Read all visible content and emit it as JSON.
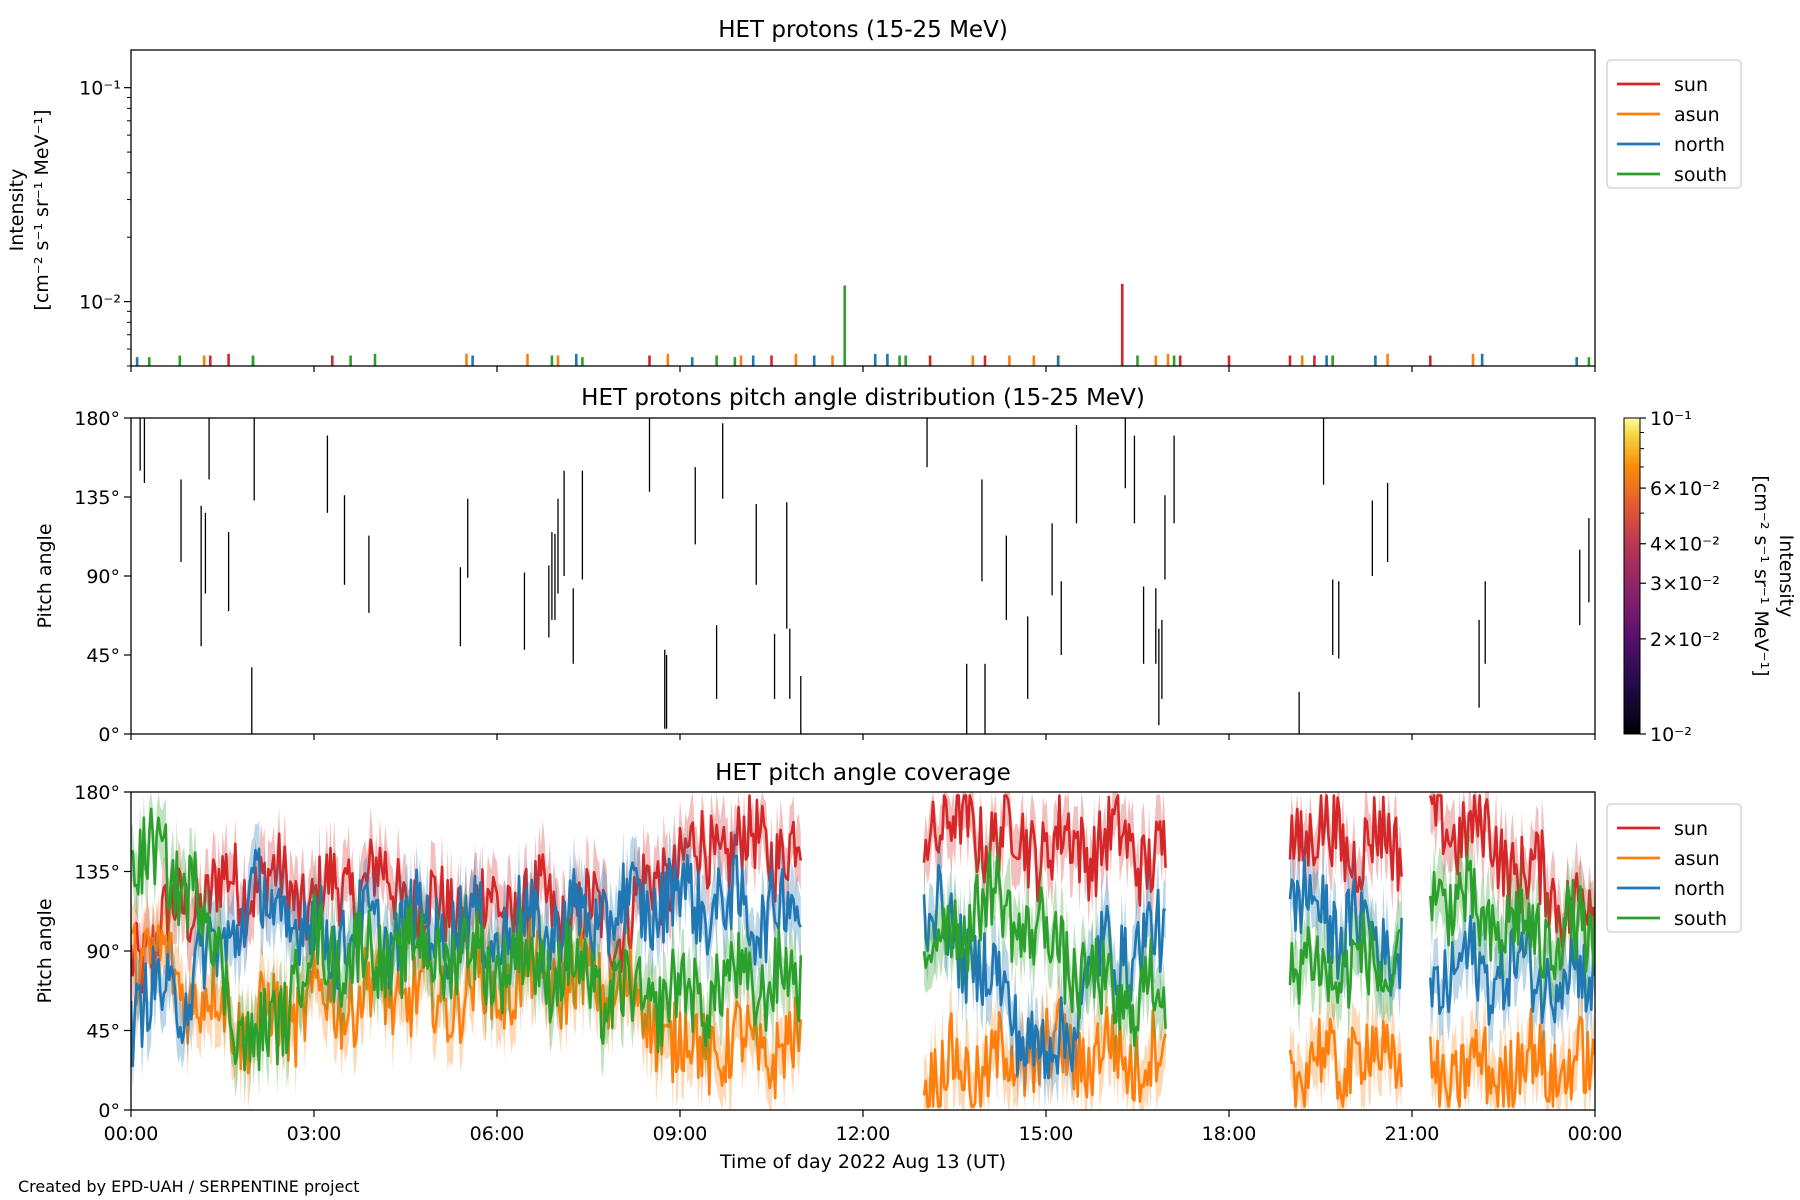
{
  "figure": {
    "credit": "Created by EPD-UAH / SERPENTINE project",
    "xlabel": "Time of day 2022 Aug 13 (UT)",
    "x_ticks": [
      "00:00",
      "03:00",
      "06:00",
      "09:00",
      "12:00",
      "15:00",
      "18:00",
      "21:00",
      "00:00"
    ]
  },
  "colors": {
    "sun": "#d62728",
    "asun": "#ff7f0e",
    "north": "#1f77b4",
    "south": "#2ca02c"
  },
  "chart_data": [
    {
      "type": "line",
      "title": "HET protons (15-25 MeV)",
      "ylabel_line1": "Intensity",
      "ylabel_line2": "[cm⁻² s⁻¹ sr⁻¹ MeV⁻¹]",
      "yscale": "log",
      "ylim": [
        0.005,
        0.15
      ],
      "y_ticks": [
        {
          "value": 0.1,
          "label": "10⁻¹"
        },
        {
          "value": 0.01,
          "label": "10⁻²"
        }
      ],
      "xlim_hours": [
        0,
        24
      ],
      "legend": [
        "sun",
        "asun",
        "north",
        "south"
      ],
      "legend_placement": "outside right, top",
      "series": [
        {
          "name": "sun",
          "spikes": [
            [
              1.3,
              0.0056
            ],
            [
              1.6,
              0.0057
            ],
            [
              3.3,
              0.0056
            ],
            [
              8.5,
              0.0056
            ],
            [
              10.5,
              0.0056
            ],
            [
              13.1,
              0.0056
            ],
            [
              14.0,
              0.0056
            ],
            [
              15.2,
              0.0056
            ],
            [
              16.25,
              0.0121
            ],
            [
              17.2,
              0.0056
            ],
            [
              18.0,
              0.0056
            ],
            [
              19.0,
              0.0056
            ],
            [
              19.4,
              0.0056
            ],
            [
              21.3,
              0.0056
            ]
          ]
        },
        {
          "name": "asun",
          "spikes": [
            [
              1.2,
              0.0056
            ],
            [
              5.5,
              0.0057
            ],
            [
              6.5,
              0.0057
            ],
            [
              7.0,
              0.0056
            ],
            [
              8.8,
              0.0057
            ],
            [
              10.0,
              0.0056
            ],
            [
              10.9,
              0.0057
            ],
            [
              11.5,
              0.0056
            ],
            [
              13.8,
              0.0056
            ],
            [
              14.4,
              0.0056
            ],
            [
              14.8,
              0.0056
            ],
            [
              16.8,
              0.0056
            ],
            [
              17.0,
              0.0057
            ],
            [
              19.2,
              0.0056
            ],
            [
              19.7,
              0.0056
            ],
            [
              20.6,
              0.0057
            ],
            [
              22.0,
              0.0057
            ]
          ]
        },
        {
          "name": "north",
          "spikes": [
            [
              0.1,
              0.0055
            ],
            [
              2.0,
              0.0055
            ],
            [
              5.6,
              0.0056
            ],
            [
              7.3,
              0.0057
            ],
            [
              9.2,
              0.0055
            ],
            [
              10.2,
              0.0056
            ],
            [
              11.2,
              0.0056
            ],
            [
              12.2,
              0.0057
            ],
            [
              12.4,
              0.0057
            ],
            [
              15.2,
              0.0055
            ],
            [
              19.6,
              0.0056
            ],
            [
              20.4,
              0.0056
            ],
            [
              22.15,
              0.0057
            ],
            [
              23.7,
              0.0055
            ]
          ]
        },
        {
          "name": "south",
          "spikes": [
            [
              0.3,
              0.0055
            ],
            [
              0.8,
              0.0056
            ],
            [
              2.0,
              0.0056
            ],
            [
              3.6,
              0.0056
            ],
            [
              4.0,
              0.0057
            ],
            [
              6.9,
              0.0056
            ],
            [
              7.4,
              0.0055
            ],
            [
              9.6,
              0.0056
            ],
            [
              9.9,
              0.0055
            ],
            [
              11.7,
              0.0119
            ],
            [
              12.6,
              0.0056
            ],
            [
              12.7,
              0.0056
            ],
            [
              16.5,
              0.0056
            ],
            [
              17.1,
              0.0056
            ],
            [
              19.7,
              0.0056
            ],
            [
              23.9,
              0.0055
            ]
          ]
        }
      ]
    },
    {
      "type": "heatmap",
      "title": "HET protons pitch angle distribution (15-25 MeV)",
      "ylabel": "Pitch angle",
      "ylim": [
        0,
        180
      ],
      "y_ticks": [
        "0°",
        "45°",
        "90°",
        "135°",
        "180°"
      ],
      "xlim_hours": [
        0,
        24
      ],
      "colorbar": {
        "label_line1": "Intensity",
        "label_line2": "[cm⁻² s⁻¹ sr⁻¹ MeV⁻¹]",
        "scale": "log",
        "range": [
          0.01,
          0.1
        ],
        "colormap": "inferno",
        "ticks": [
          {
            "value": 0.1,
            "label": "10⁻¹"
          },
          {
            "value": 0.06,
            "label": "6×10⁻²"
          },
          {
            "value": 0.04,
            "label": "4×10⁻²"
          },
          {
            "value": 0.03,
            "label": "3×10⁻²"
          },
          {
            "value": 0.02,
            "label": "2×10⁻²"
          },
          {
            "value": 0.01,
            "label": "10⁻²"
          }
        ]
      },
      "cells": [
        [
          0.15,
          150,
          180
        ],
        [
          0.22,
          143,
          180
        ],
        [
          0.82,
          98,
          145
        ],
        [
          1.15,
          50,
          130
        ],
        [
          1.22,
          80,
          126
        ],
        [
          1.28,
          145,
          180
        ],
        [
          1.6,
          70,
          115
        ],
        [
          1.98,
          0,
          38
        ],
        [
          2.02,
          133,
          180
        ],
        [
          3.22,
          126,
          170
        ],
        [
          3.5,
          85,
          136
        ],
        [
          3.9,
          69,
          113
        ],
        [
          5.4,
          50,
          95
        ],
        [
          5.52,
          89,
          134
        ],
        [
          6.45,
          48,
          92
        ],
        [
          6.85,
          55,
          96
        ],
        [
          6.9,
          65,
          115
        ],
        [
          6.95,
          65,
          114
        ],
        [
          7.0,
          80,
          134
        ],
        [
          7.1,
          90,
          150
        ],
        [
          7.25,
          40,
          83
        ],
        [
          7.4,
          88,
          150
        ],
        [
          8.5,
          138,
          180
        ],
        [
          8.75,
          3,
          48
        ],
        [
          8.78,
          3,
          45
        ],
        [
          9.25,
          108,
          152
        ],
        [
          9.6,
          20,
          62
        ],
        [
          9.7,
          134,
          177
        ],
        [
          10.25,
          85,
          131
        ],
        [
          10.55,
          20,
          57
        ],
        [
          10.75,
          60,
          132
        ],
        [
          10.8,
          20,
          60
        ],
        [
          10.98,
          0,
          33
        ],
        [
          13.05,
          152,
          180
        ],
        [
          13.7,
          0,
          40
        ],
        [
          13.95,
          87,
          145
        ],
        [
          14.0,
          0,
          40
        ],
        [
          14.35,
          65,
          113
        ],
        [
          14.7,
          20,
          67
        ],
        [
          15.1,
          79,
          120
        ],
        [
          15.25,
          45,
          87
        ],
        [
          15.5,
          120,
          176
        ],
        [
          16.3,
          140,
          180
        ],
        [
          16.45,
          120,
          170
        ],
        [
          16.6,
          40,
          84
        ],
        [
          16.8,
          40,
          83
        ],
        [
          16.85,
          5,
          60
        ],
        [
          16.9,
          20,
          65
        ],
        [
          16.95,
          88,
          136
        ],
        [
          17.1,
          120,
          170
        ],
        [
          19.15,
          0,
          24
        ],
        [
          19.55,
          142,
          180
        ],
        [
          19.7,
          45,
          88
        ],
        [
          19.8,
          43,
          87
        ],
        [
          20.35,
          90,
          133
        ],
        [
          20.6,
          98,
          143
        ],
        [
          22.1,
          15,
          65
        ],
        [
          22.2,
          40,
          87
        ],
        [
          23.75,
          62,
          105
        ],
        [
          23.9,
          75,
          123
        ]
      ]
    },
    {
      "type": "area",
      "title": "HET pitch angle coverage",
      "ylabel": "Pitch angle",
      "ylim": [
        0,
        180
      ],
      "y_ticks": [
        "0°",
        "45°",
        "90°",
        "135°",
        "180°"
      ],
      "xlim_hours": [
        0,
        24
      ],
      "legend": [
        "sun",
        "asun",
        "north",
        "south"
      ],
      "legend_placement": "outside right, top",
      "coverage_segments_hours": [
        [
          0,
          11.0
        ],
        [
          13.0,
          16.97
        ],
        [
          19.0,
          20.85
        ],
        [
          21.3,
          24
        ]
      ],
      "series": [
        {
          "name": "sun",
          "knots": [
            [
              0,
              85
            ],
            [
              1,
              118
            ],
            [
              2,
              132
            ],
            [
              3,
              118
            ],
            [
              4,
              132
            ],
            [
              5,
              112
            ],
            [
              6,
              116
            ],
            [
              7,
              112
            ],
            [
              8,
              106
            ],
            [
              9,
              142
            ],
            [
              10,
              150
            ],
            [
              11,
              150
            ],
            [
              13,
              164
            ],
            [
              14,
              158
            ],
            [
              15,
              150
            ],
            [
              16,
              152
            ],
            [
              17,
              142
            ],
            [
              19,
              160
            ],
            [
              20,
              150
            ],
            [
              20.85,
              152
            ],
            [
              21.3,
              162
            ],
            [
              22,
              160
            ],
            [
              23,
              130
            ],
            [
              24,
              112
            ]
          ]
        },
        {
          "name": "asun",
          "knots": [
            [
              0,
              95
            ],
            [
              1,
              68
            ],
            [
              2,
              48
            ],
            [
              3,
              60
            ],
            [
              4,
              67
            ],
            [
              5,
              62
            ],
            [
              6,
              72
            ],
            [
              7,
              74
            ],
            [
              8,
              70
            ],
            [
              9,
              36
            ],
            [
              10,
              35
            ],
            [
              11,
              32
            ],
            [
              13,
              20
            ],
            [
              14,
              24
            ],
            [
              15,
              32
            ],
            [
              16,
              32
            ],
            [
              17,
              30
            ],
            [
              19,
              22
            ],
            [
              20,
              30
            ],
            [
              20.85,
              30
            ],
            [
              21.3,
              18
            ],
            [
              22,
              20
            ],
            [
              23,
              28
            ],
            [
              24,
              20
            ]
          ]
        },
        {
          "name": "north",
          "knots": [
            [
              0,
              55
            ],
            [
              1,
              72
            ],
            [
              2,
              120
            ],
            [
              3,
              100
            ],
            [
              4,
              100
            ],
            [
              5,
              105
            ],
            [
              6,
              102
            ],
            [
              7,
              104
            ],
            [
              8,
              112
            ],
            [
              9,
              122
            ],
            [
              10,
              112
            ],
            [
              11,
              114
            ],
            [
              13,
              115
            ],
            [
              14,
              80
            ],
            [
              15,
              26
            ],
            [
              16,
              90
            ],
            [
              17,
              95
            ],
            [
              19,
              118
            ],
            [
              20,
              104
            ],
            [
              20.85,
              90
            ],
            [
              21.3,
              75
            ],
            [
              22,
              80
            ],
            [
              23,
              78
            ],
            [
              24,
              76
            ]
          ]
        },
        {
          "name": "south",
          "knots": [
            [
              0,
              145
            ],
            [
              1,
              130
            ],
            [
              2,
              28
            ],
            [
              3,
              92
            ],
            [
              4,
              86
            ],
            [
              5,
              90
            ],
            [
              6,
              85
            ],
            [
              7,
              82
            ],
            [
              8,
              62
            ],
            [
              9,
              64
            ],
            [
              10,
              72
            ],
            [
              11,
              72
            ],
            [
              13,
              88
            ],
            [
              14,
              120
            ],
            [
              15,
              98
            ],
            [
              16,
              62
            ],
            [
              17,
              66
            ],
            [
              19,
              80
            ],
            [
              20,
              80
            ],
            [
              20.85,
              82
            ],
            [
              21.3,
              132
            ],
            [
              22,
              108
            ],
            [
              23,
              100
            ],
            [
              24,
              98
            ]
          ]
        }
      ]
    }
  ]
}
